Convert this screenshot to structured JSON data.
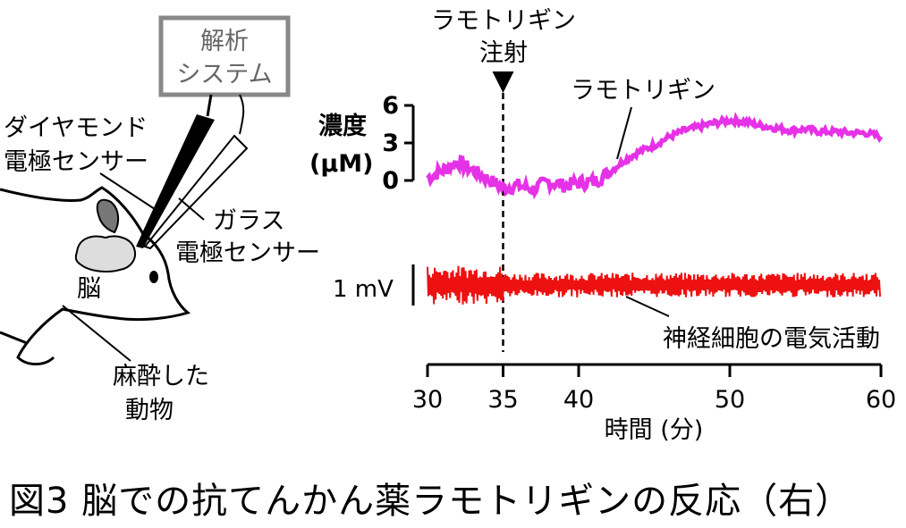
{
  "illustration": {
    "system_box_line1": "解析",
    "system_box_line2": "システム",
    "diamond_line1": "ダイヤモンド",
    "diamond_line2": "電極センサー",
    "glass_line1": "ガラス",
    "glass_line2": "電極センサー",
    "brain_label": "脳",
    "animal_line1": "麻酔した",
    "animal_line2": "動物"
  },
  "chart_data": {
    "type": "line",
    "injection_line1": "ラモトリギン",
    "injection_line2": "注射",
    "injection_x": 35,
    "xlabel": "時間 (分)",
    "xlim": [
      30,
      60
    ],
    "xticks": [
      30,
      35,
      40,
      50,
      60
    ],
    "top_panel": {
      "ylabel_line1": "濃度",
      "ylabel_line2": "(μM)",
      "ylim": [
        0,
        6
      ],
      "yticks": [
        "6",
        "3",
        "0"
      ],
      "series_name": "ラモトリギン",
      "color": "#e632e6",
      "x": [
        30,
        31,
        32,
        33,
        34,
        35,
        36,
        37,
        38,
        39,
        40,
        41,
        42,
        43,
        44,
        45,
        46,
        47,
        48,
        49,
        50,
        51,
        52,
        53,
        54,
        55,
        56,
        57,
        58,
        59,
        60
      ],
      "y": [
        0.2,
        0.8,
        1.5,
        0.8,
        0.1,
        -0.6,
        -0.4,
        -0.7,
        -0.1,
        -0.4,
        -0.2,
        -0.1,
        0.6,
        1.6,
        2.3,
        2.8,
        3.5,
        4.0,
        4.3,
        4.6,
        4.8,
        4.7,
        4.4,
        4.2,
        4.0,
        4.1,
        3.9,
        3.9,
        3.8,
        3.8,
        3.5
      ]
    },
    "bottom_panel": {
      "series_name": "神経細胞の電気活動",
      "scale_bar_label": "1 mV",
      "color": "#ee1111",
      "amplitude_before_mV": 0.95,
      "amplitude_after_mV": 0.6
    }
  },
  "caption": "図3 脳での抗てんかん薬ラモトリギンの反応（右）"
}
